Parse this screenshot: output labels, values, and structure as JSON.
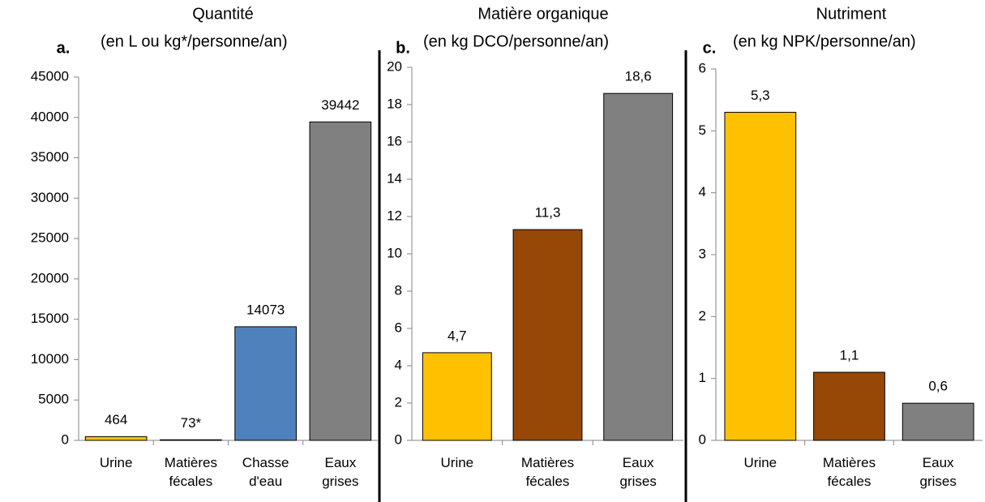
{
  "chart_data": [
    {
      "type": "bar",
      "label": "a.",
      "title": "Quantité",
      "subtitle": "(en L ou kg*/personne/an)",
      "categories": [
        [
          "Urine"
        ],
        [
          "Matières",
          "fécales"
        ],
        [
          "Chasse",
          "d'eau"
        ],
        [
          "Eaux",
          "grises"
        ]
      ],
      "values": [
        464,
        73,
        14073,
        39442
      ],
      "value_labels": [
        "464",
        "73*",
        "14073",
        "39442"
      ],
      "colors": [
        "#FFC000",
        "#974706",
        "#4F81BD",
        "#808080"
      ],
      "ylim": [
        0,
        45000
      ],
      "yticks": [
        0,
        5000,
        10000,
        15000,
        20000,
        25000,
        30000,
        35000,
        40000,
        45000
      ]
    },
    {
      "type": "bar",
      "label": "b.",
      "title": "Matière organique",
      "subtitle": "(en kg DCO/personne/an)",
      "categories": [
        [
          "Urine"
        ],
        [
          "Matières",
          "fécales"
        ],
        [
          "Eaux",
          "grises"
        ]
      ],
      "values": [
        4.7,
        11.3,
        18.6
      ],
      "value_labels": [
        "4,7",
        "11,3",
        "18,6"
      ],
      "colors": [
        "#FFC000",
        "#974706",
        "#808080"
      ],
      "ylim": [
        0,
        20
      ],
      "yticks": [
        0,
        2,
        4,
        6,
        8,
        10,
        12,
        14,
        16,
        18,
        20
      ]
    },
    {
      "type": "bar",
      "label": "c.",
      "title": "Nutriment",
      "subtitle": "(en kg NPK/personne/an)",
      "categories": [
        [
          "Urine"
        ],
        [
          "Matières",
          "fécales"
        ],
        [
          "Eaux",
          "grises"
        ]
      ],
      "values": [
        5.3,
        1.1,
        0.6
      ],
      "value_labels": [
        "5,3",
        "1,1",
        "0,6"
      ],
      "colors": [
        "#FFC000",
        "#974706",
        "#808080"
      ],
      "ylim": [
        0,
        6
      ],
      "yticks": [
        0,
        1,
        2,
        3,
        4,
        5,
        6
      ]
    }
  ]
}
